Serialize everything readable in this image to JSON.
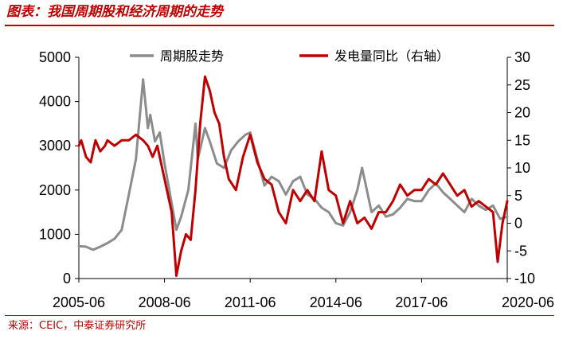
{
  "figure_title": "图表：我国周期股和经济周期的走势",
  "source_note": "来源：CEIC，中泰证券研究所",
  "chart_data": {
    "type": "line",
    "title": "",
    "xlabel": "",
    "x_ticks": [
      "2005-06",
      "2008-06",
      "2011-06",
      "2014-06",
      "2017-06",
      "2020-06"
    ],
    "y_left": {
      "ylim": [
        0,
        5000
      ],
      "ticks": [
        "0",
        "1000",
        "2000",
        "3000",
        "4000",
        "5000"
      ]
    },
    "y_right": {
      "ylim": [
        -10,
        30
      ],
      "ticks": [
        "-10",
        "-5",
        "0",
        "5",
        "10",
        "15",
        "20",
        "25",
        "30"
      ]
    },
    "grid": false,
    "legend_position": "top",
    "series": [
      {
        "name": "周期股走势",
        "axis": "left",
        "color": "#8c8c8c",
        "points": [
          [
            "2005-06",
            730
          ],
          [
            "2005-09",
            720
          ],
          [
            "2005-12",
            650
          ],
          [
            "2006-03",
            720
          ],
          [
            "2006-06",
            800
          ],
          [
            "2006-09",
            900
          ],
          [
            "2006-12",
            1100
          ],
          [
            "2007-03",
            1900
          ],
          [
            "2007-06",
            2700
          ],
          [
            "2007-09",
            4500
          ],
          [
            "2007-11",
            3400
          ],
          [
            "2007-12",
            3700
          ],
          [
            "2008-02",
            3100
          ],
          [
            "2008-04",
            3300
          ],
          [
            "2008-06",
            2600
          ],
          [
            "2008-09",
            1700
          ],
          [
            "2008-11",
            1100
          ],
          [
            "2009-01",
            1400
          ],
          [
            "2009-04",
            2000
          ],
          [
            "2009-07",
            3500
          ],
          [
            "2009-08",
            2700
          ],
          [
            "2009-11",
            3400
          ],
          [
            "2010-01",
            3100
          ],
          [
            "2010-04",
            2600
          ],
          [
            "2010-07",
            2500
          ],
          [
            "2010-10",
            2900
          ],
          [
            "2011-01",
            3100
          ],
          [
            "2011-04",
            3250
          ],
          [
            "2011-06",
            3300
          ],
          [
            "2011-09",
            2700
          ],
          [
            "2011-12",
            2100
          ],
          [
            "2012-03",
            2300
          ],
          [
            "2012-06",
            2200
          ],
          [
            "2012-09",
            1900
          ],
          [
            "2012-12",
            2200
          ],
          [
            "2013-03",
            2300
          ],
          [
            "2013-06",
            1900
          ],
          [
            "2013-09",
            1800
          ],
          [
            "2013-12",
            1600
          ],
          [
            "2014-03",
            1500
          ],
          [
            "2014-06",
            1250
          ],
          [
            "2014-09",
            1200
          ],
          [
            "2014-12",
            1500
          ],
          [
            "2015-03",
            2000
          ],
          [
            "2015-05",
            2500
          ],
          [
            "2015-07",
            2000
          ],
          [
            "2015-09",
            1500
          ],
          [
            "2015-12",
            1650
          ],
          [
            "2016-03",
            1400
          ],
          [
            "2016-06",
            1450
          ],
          [
            "2016-09",
            1600
          ],
          [
            "2016-12",
            1800
          ],
          [
            "2017-03",
            1750
          ],
          [
            "2017-06",
            1750
          ],
          [
            "2017-09",
            2000
          ],
          [
            "2017-12",
            2150
          ],
          [
            "2018-03",
            1950
          ],
          [
            "2018-06",
            1800
          ],
          [
            "2018-09",
            1650
          ],
          [
            "2018-12",
            1500
          ],
          [
            "2019-03",
            1800
          ],
          [
            "2019-06",
            1650
          ],
          [
            "2019-09",
            1550
          ],
          [
            "2019-12",
            1650
          ],
          [
            "2020-03",
            1350
          ],
          [
            "2020-06",
            1400
          ]
        ]
      },
      {
        "name": "发电量同比（右轴）",
        "axis": "right",
        "color": "#c00000",
        "points": [
          [
            "2005-06",
            14
          ],
          [
            "2005-07",
            15
          ],
          [
            "2005-09",
            12
          ],
          [
            "2005-11",
            11
          ],
          [
            "2006-01",
            15
          ],
          [
            "2006-03",
            13
          ],
          [
            "2006-05",
            14
          ],
          [
            "2006-06",
            15
          ],
          [
            "2006-09",
            14
          ],
          [
            "2006-12",
            15
          ],
          [
            "2007-03",
            15
          ],
          [
            "2007-06",
            16
          ],
          [
            "2007-09",
            15
          ],
          [
            "2007-11",
            14
          ],
          [
            "2008-01",
            12
          ],
          [
            "2008-03",
            14
          ],
          [
            "2008-05",
            10
          ],
          [
            "2008-07",
            6
          ],
          [
            "2008-09",
            2
          ],
          [
            "2008-11",
            -9.5
          ],
          [
            "2009-01",
            -5
          ],
          [
            "2009-03",
            -2
          ],
          [
            "2009-05",
            -3
          ],
          [
            "2009-07",
            6
          ],
          [
            "2009-09",
            18
          ],
          [
            "2009-11",
            26.5
          ],
          [
            "2010-01",
            24
          ],
          [
            "2010-03",
            20
          ],
          [
            "2010-05",
            18
          ],
          [
            "2010-07",
            12
          ],
          [
            "2010-09",
            8
          ],
          [
            "2010-12",
            6
          ],
          [
            "2011-03",
            12
          ],
          [
            "2011-06",
            16
          ],
          [
            "2011-09",
            11
          ],
          [
            "2011-12",
            8
          ],
          [
            "2012-03",
            7
          ],
          [
            "2012-06",
            2
          ],
          [
            "2012-09",
            0
          ],
          [
            "2012-12",
            6
          ],
          [
            "2013-03",
            4
          ],
          [
            "2013-06",
            6
          ],
          [
            "2013-09",
            4
          ],
          [
            "2013-12",
            13
          ],
          [
            "2014-03",
            6
          ],
          [
            "2014-06",
            5
          ],
          [
            "2014-09",
            0
          ],
          [
            "2014-12",
            4
          ],
          [
            "2015-03",
            0
          ],
          [
            "2015-06",
            1
          ],
          [
            "2015-09",
            -1
          ],
          [
            "2015-12",
            2
          ],
          [
            "2016-03",
            2
          ],
          [
            "2016-06",
            4
          ],
          [
            "2016-09",
            7
          ],
          [
            "2016-12",
            5
          ],
          [
            "2017-03",
            6
          ],
          [
            "2017-06",
            6
          ],
          [
            "2017-09",
            8
          ],
          [
            "2017-12",
            7
          ],
          [
            "2018-03",
            9
          ],
          [
            "2018-06",
            7
          ],
          [
            "2018-09",
            5
          ],
          [
            "2018-12",
            6
          ],
          [
            "2019-03",
            3
          ],
          [
            "2019-06",
            4
          ],
          [
            "2019-09",
            3
          ],
          [
            "2019-12",
            2
          ],
          [
            "2020-02",
            -7
          ],
          [
            "2020-04",
            0
          ],
          [
            "2020-06",
            4
          ]
        ]
      }
    ]
  }
}
